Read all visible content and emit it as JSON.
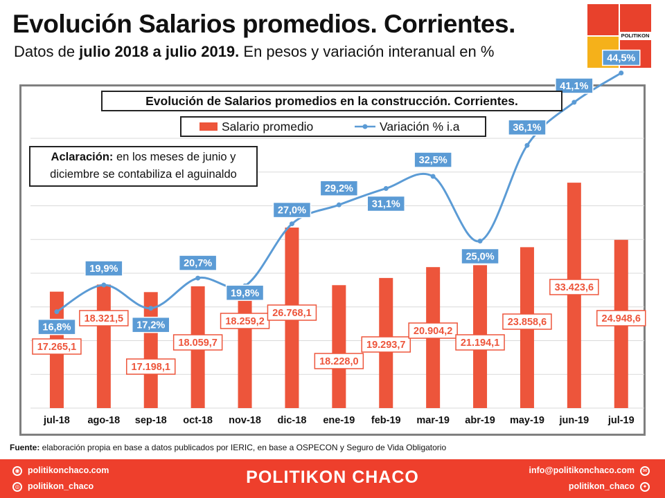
{
  "header": {
    "title": "Evolución Salarios promedios. Corrientes.",
    "subtitle_pre": "Datos de ",
    "subtitle_bold": "julio 2018 a julio 2019.",
    "subtitle_post": " En pesos y variación interanual en %"
  },
  "logo": {
    "text": "POLITIKON"
  },
  "note": {
    "strong": "Aclaración:",
    "line1_rest": " en los meses de junio y",
    "line2": "diciembre se contabiliza el aguinaldo"
  },
  "source": {
    "label": "Fuente:",
    "text": " elaboración propia en base a datos publicados por IERIC, en base a OSPECON y Seguro de Vida Obligatorio"
  },
  "footer": {
    "brand": "POLITIKON CHACO",
    "website": "politikonchaco.com",
    "instagram": "politikon_chaco",
    "email": "info@politikonchaco.com",
    "twitter": "politikon_chaco"
  },
  "colors": {
    "bar": "#ed553b",
    "line": "#5b9bd5",
    "footer": "#ee3f2c",
    "logo_red": "#e8412c",
    "logo_yellow": "#f5b11a"
  },
  "chart_data": {
    "type": "bar+line",
    "title": "Evolución de Salarios promedios en la construcción. Corrientes.",
    "categories": [
      "jul-18",
      "ago-18",
      "sep-18",
      "oct-18",
      "nov-18",
      "dic-18",
      "ene-19",
      "feb-19",
      "mar-19",
      "abr-19",
      "may-19",
      "jun-19",
      "jul-19"
    ],
    "series": [
      {
        "name": "Salario promedio",
        "type": "bar",
        "axis": "left",
        "values": [
          17265.1,
          18321.5,
          17198.1,
          18059.7,
          18259.2,
          26768.1,
          18228.0,
          19293.7,
          20904.2,
          21194.1,
          23858.6,
          33423.6,
          24948.6
        ],
        "labels": [
          "17.265,1",
          "18.321,5",
          "17.198,1",
          "18.059,7",
          "18.259,2",
          "26.768,1",
          "18.228,0",
          "19.293,7",
          "20.904,2",
          "21.194,1",
          "23.858,6",
          "33.423,6",
          "24.948,6"
        ]
      },
      {
        "name": "Variación % i.a",
        "type": "line",
        "axis": "right",
        "values": [
          16.8,
          19.9,
          17.2,
          20.7,
          19.8,
          27.0,
          29.2,
          31.1,
          32.5,
          25.0,
          36.1,
          41.1,
          44.5
        ],
        "labels": [
          "16,8%",
          "19,9%",
          "17,2%",
          "20,7%",
          "19,8%",
          "27,0%",
          "29,2%",
          "31,1%",
          "32,5%",
          "25,0%",
          "36,1%",
          "41,1%",
          "44,5%"
        ]
      }
    ],
    "ylim_left": [
      0,
      40000
    ],
    "ylim_right": [
      0,
      50
    ],
    "grid": true,
    "legend": "top-center"
  }
}
